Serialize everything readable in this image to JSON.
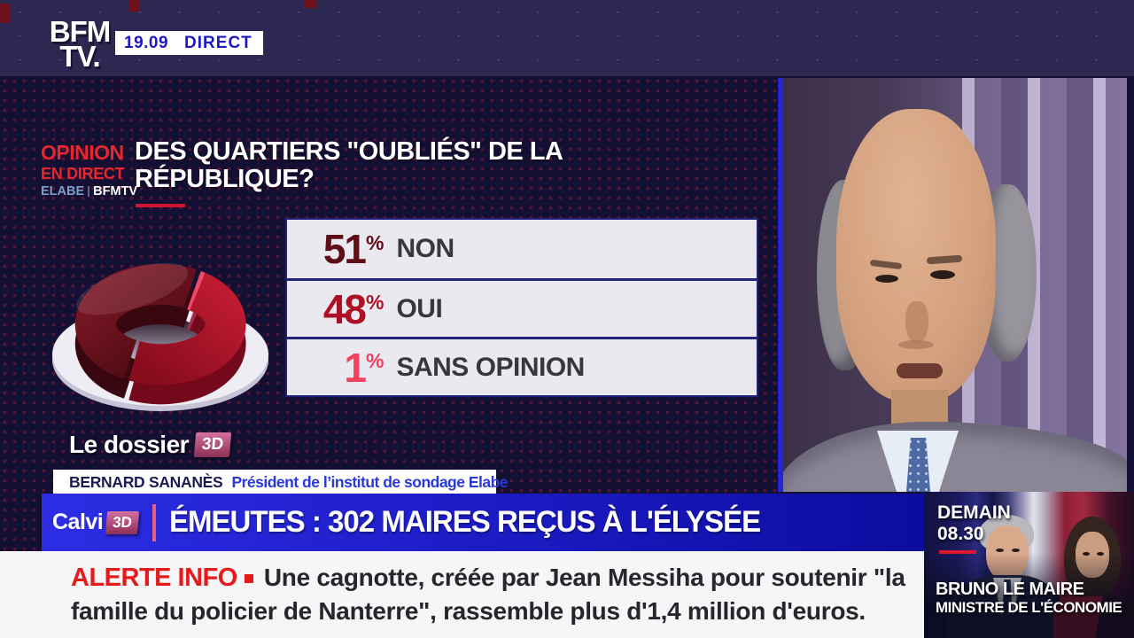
{
  "header": {
    "logo_line1": "BFM",
    "logo_line2": "TV.",
    "time": "19.09",
    "live": "DIRECT"
  },
  "opinion_panel": {
    "kicker_line1": "OPINION",
    "kicker_line2": "EN DIRECT",
    "kicker_elabe": "ELABE",
    "kicker_bfmtv": "BFMTV",
    "headline": "DES QUARTIERS \"OUBLIÉS\" DE LA RÉPUBLIQUE?",
    "results": [
      {
        "value": "51",
        "unit": "%",
        "label": "NON"
      },
      {
        "value": "48",
        "unit": "%",
        "label": "OUI"
      },
      {
        "value": "1",
        "unit": "%",
        "label": "SANS OPINION"
      }
    ],
    "footer_brand": "Le dossier",
    "footer_brand_badge": "3D"
  },
  "chart_data": {
    "type": "pie",
    "style": "3d-donut",
    "title": "DES QUARTIERS \"OUBLIÉS\" DE LA RÉPUBLIQUE?",
    "labels": [
      "NON",
      "OUI",
      "SANS OPINION"
    ],
    "values": [
      51,
      48,
      1
    ],
    "unit": "%",
    "colors": [
      "#5F0D17",
      "#AE1126",
      "#F2415F"
    ],
    "source": "OPINION EN DIRECT ELABE BFMTV"
  },
  "speaker": {
    "name": "BERNARD SANANÈS",
    "title": "Président de l’institut de sondage Elabe"
  },
  "banner": {
    "brand": "Calvi",
    "brand_badge": "3D",
    "headline": "ÉMEUTES : 302 MAIRES REÇUS À L'ÉLYSÉE"
  },
  "ticker": {
    "label": "ALERTE INFO",
    "text": "Une cagnotte, créée par Jean Messiha pour soutenir \"la famille du policier de Nanterre\", rassemble plus d'1,4 million d'euros."
  },
  "promo": {
    "day": "DEMAIN",
    "time": "08.30",
    "guest_name": "BRUNO LE MAIRE",
    "guest_title": "MINISTRE DE L'ÉCONOMIE"
  },
  "colors": {
    "accent_red": "#E8262E",
    "direct_blue": "#1C19C4",
    "poll_non": "#5F0D17",
    "poll_oui": "#AE1126",
    "poll_sans_opinion": "#F2415F",
    "banner_blue": "#1C1CC6",
    "badge_pink": "#B04A7C",
    "alert_red": "#E31B1B"
  }
}
